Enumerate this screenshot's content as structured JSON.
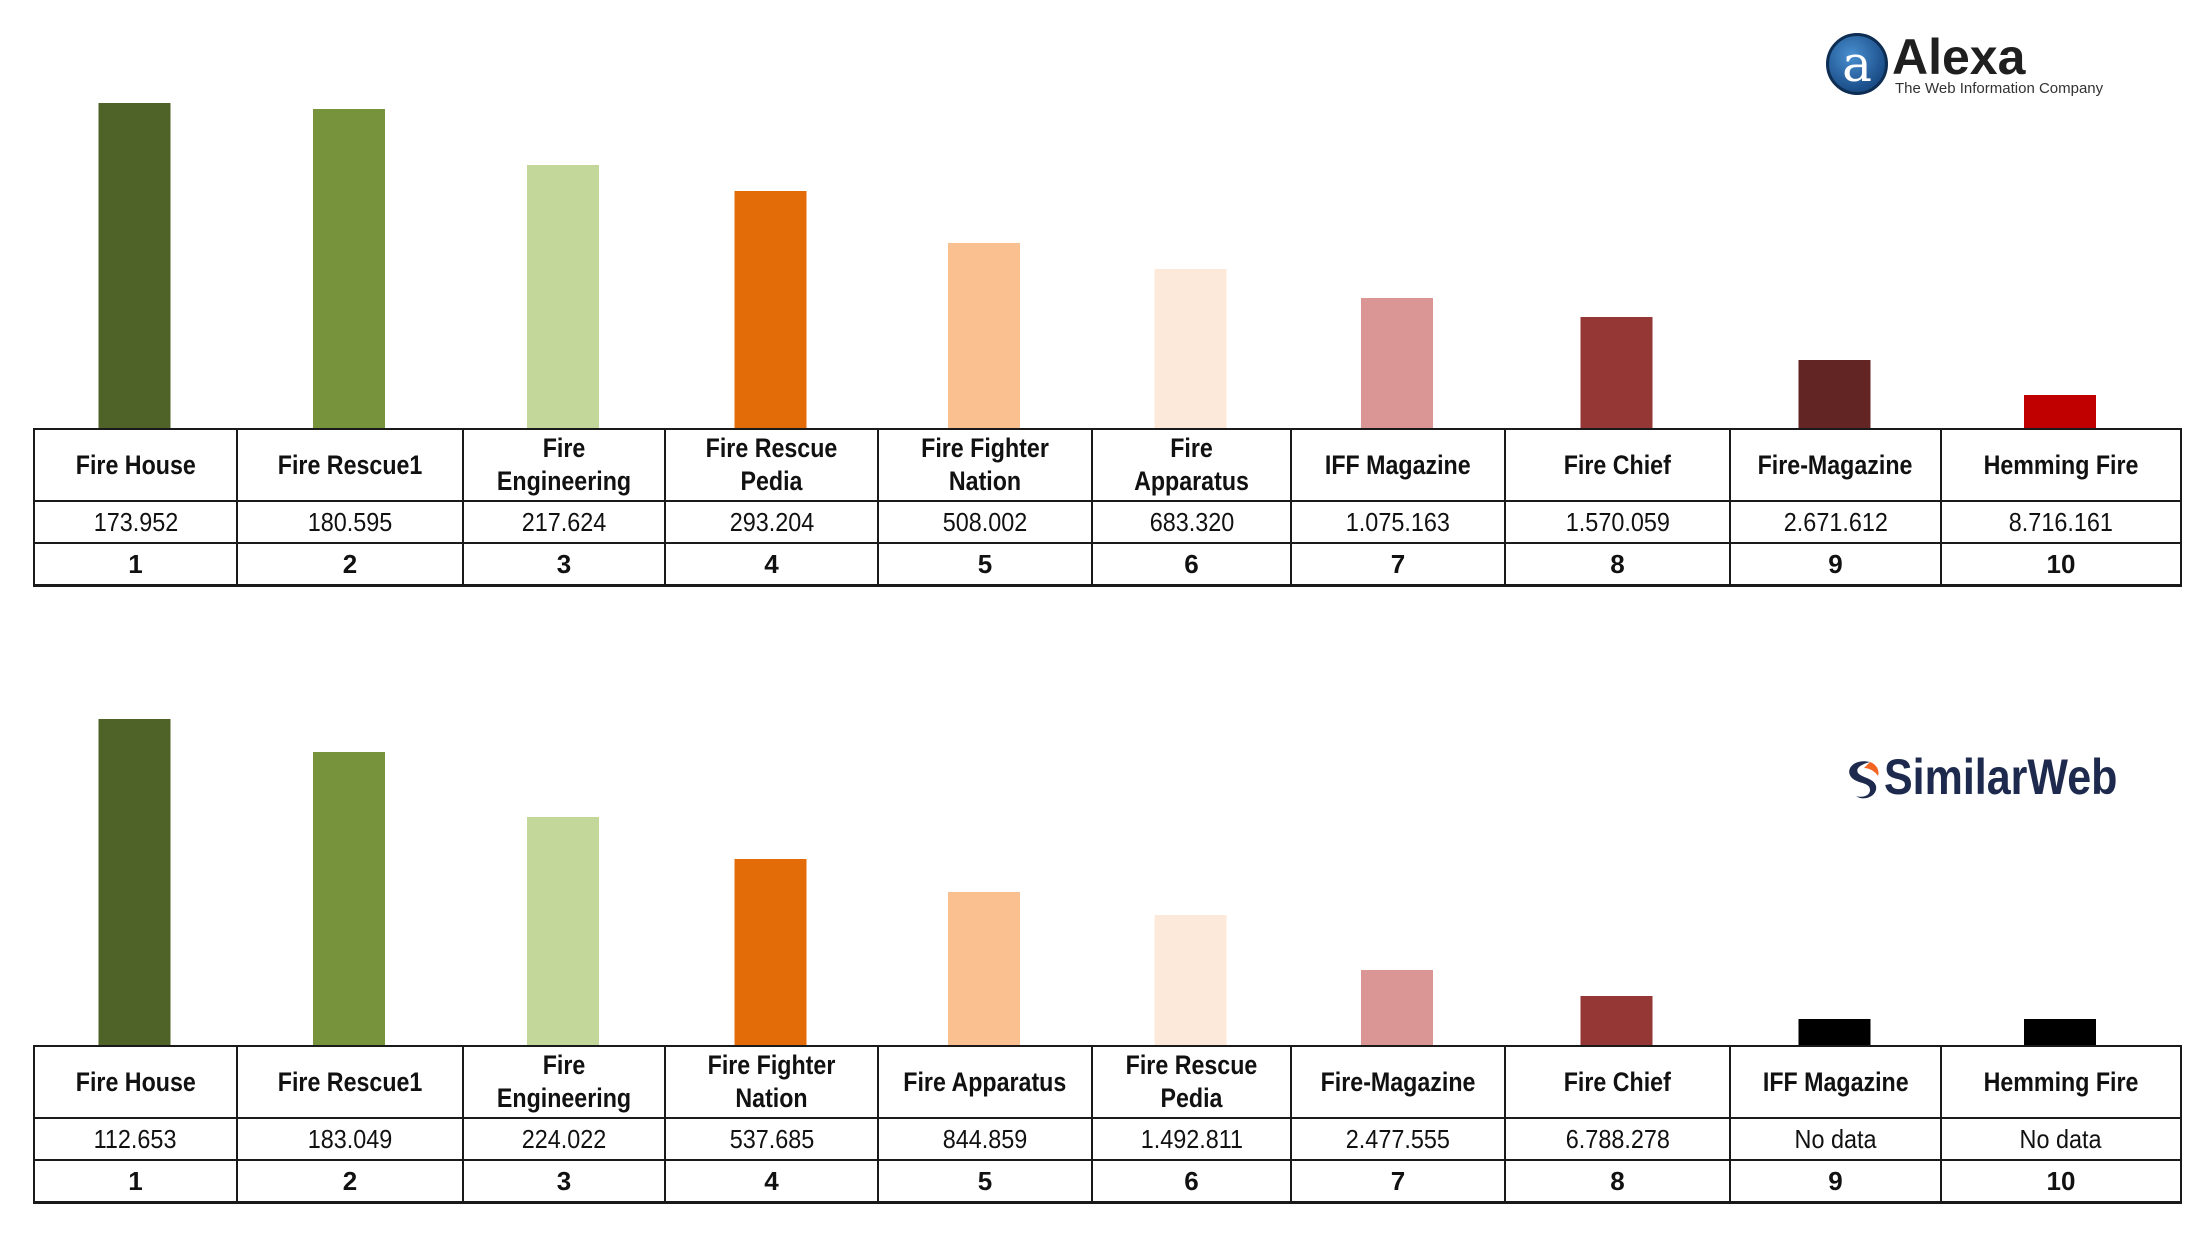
{
  "colors": [
    "#4f6228",
    "#77933c",
    "#c4d79b",
    "#e36c09",
    "#fac090",
    "#fde9d9",
    "#d99694",
    "#953735",
    "#632523",
    "#c00000"
  ],
  "logos": {
    "alexa": {
      "mark": "a",
      "name": "Alexa",
      "tagline": "The Web Information Company"
    },
    "similarweb": {
      "name": "SimilarWeb"
    }
  },
  "chart_data": [
    {
      "type": "bar",
      "source": "Alexa",
      "categories": [
        "Fire House",
        "Fire Rescue1",
        "Fire Engineering",
        "Fire Rescue Pedia",
        "Fire Fighter Nation",
        "Fire Apparatus",
        "IFF Magazine",
        "Fire Chief",
        "Fire-Magazine",
        "Hemming Fire"
      ],
      "values": [
        "173.952",
        "180.595",
        "217.624",
        "293.204",
        "508.002",
        "683.320",
        "1.075.163",
        "1.570.059",
        "2.671.612",
        "8.716.161"
      ],
      "ranks": [
        "1",
        "2",
        "3",
        "4",
        "5",
        "6",
        "7",
        "8",
        "9",
        "10"
      ],
      "bar_levels": [
        1.0,
        0.98,
        0.81,
        0.73,
        0.57,
        0.49,
        0.4,
        0.34,
        0.21,
        0.1
      ],
      "bar_colors": [
        "#4f6228",
        "#77933c",
        "#c4d79b",
        "#e36c09",
        "#fac090",
        "#fde9d9",
        "#d99694",
        "#953735",
        "#632523",
        "#c00000"
      ]
    },
    {
      "type": "bar",
      "source": "SimilarWeb",
      "categories": [
        "Fire House",
        "Fire Rescue1",
        "Fire Engineering",
        "Fire Fighter Nation",
        "Fire Apparatus",
        "Fire Rescue Pedia",
        "Fire-Magazine",
        "Fire Chief",
        "IFF Magazine",
        "Hemming Fire"
      ],
      "values": [
        "112.653",
        "183.049",
        "224.022",
        "537.685",
        "844.859",
        "1.492.811",
        "2.477.555",
        "6.788.278",
        "No data",
        "No data"
      ],
      "ranks": [
        "1",
        "2",
        "3",
        "4",
        "5",
        "6",
        "7",
        "8",
        "9",
        "10"
      ],
      "bar_levels": [
        1.0,
        0.9,
        0.7,
        0.57,
        0.47,
        0.4,
        0.23,
        0.15,
        0.08,
        0.08
      ],
      "bar_colors": [
        "#4f6228",
        "#77933c",
        "#c4d79b",
        "#e36c09",
        "#fac090",
        "#fde9d9",
        "#d99694",
        "#953735",
        "#000000",
        "#000000"
      ]
    }
  ]
}
